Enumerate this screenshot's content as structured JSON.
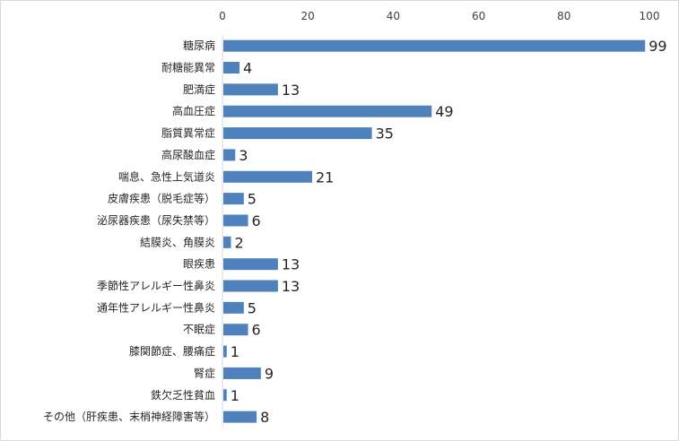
{
  "chart_data": {
    "type": "bar",
    "orientation": "horizontal",
    "categories": [
      "糖尿病",
      "耐糖能異常",
      "肥満症",
      "高血圧症",
      "脂質異常症",
      "高尿酸血症",
      "喘息、急性上気道炎",
      "皮膚疾患（脱毛症等）",
      "泌尿器疾患（尿失禁等）",
      "結膜炎、角膜炎",
      "眼疾患",
      "季節性アレルギー性鼻炎",
      "通年性アレルギー性鼻炎",
      "不眠症",
      "膝関節症、腰痛症",
      "腎症",
      "鉄欠乏性貧血",
      "その他（肝疾患、末梢神経障害等）"
    ],
    "values": [
      99,
      4,
      13,
      49,
      35,
      3,
      21,
      5,
      6,
      2,
      13,
      13,
      5,
      6,
      1,
      9,
      1,
      8
    ],
    "data_labels": [
      "99",
      "4",
      "13",
      "49",
      "35",
      "3",
      "21",
      "5",
      "6",
      "2",
      "13",
      "13",
      "5",
      "6",
      "1",
      "9",
      "1",
      "8"
    ],
    "x_ticks": [
      "0",
      "20",
      "40",
      "60",
      "80",
      "100"
    ],
    "xlim": [
      0,
      100
    ],
    "axis_position": "top",
    "grid": false,
    "bar_color": "#4f81bd",
    "title": "",
    "xlabel": "",
    "ylabel": ""
  }
}
